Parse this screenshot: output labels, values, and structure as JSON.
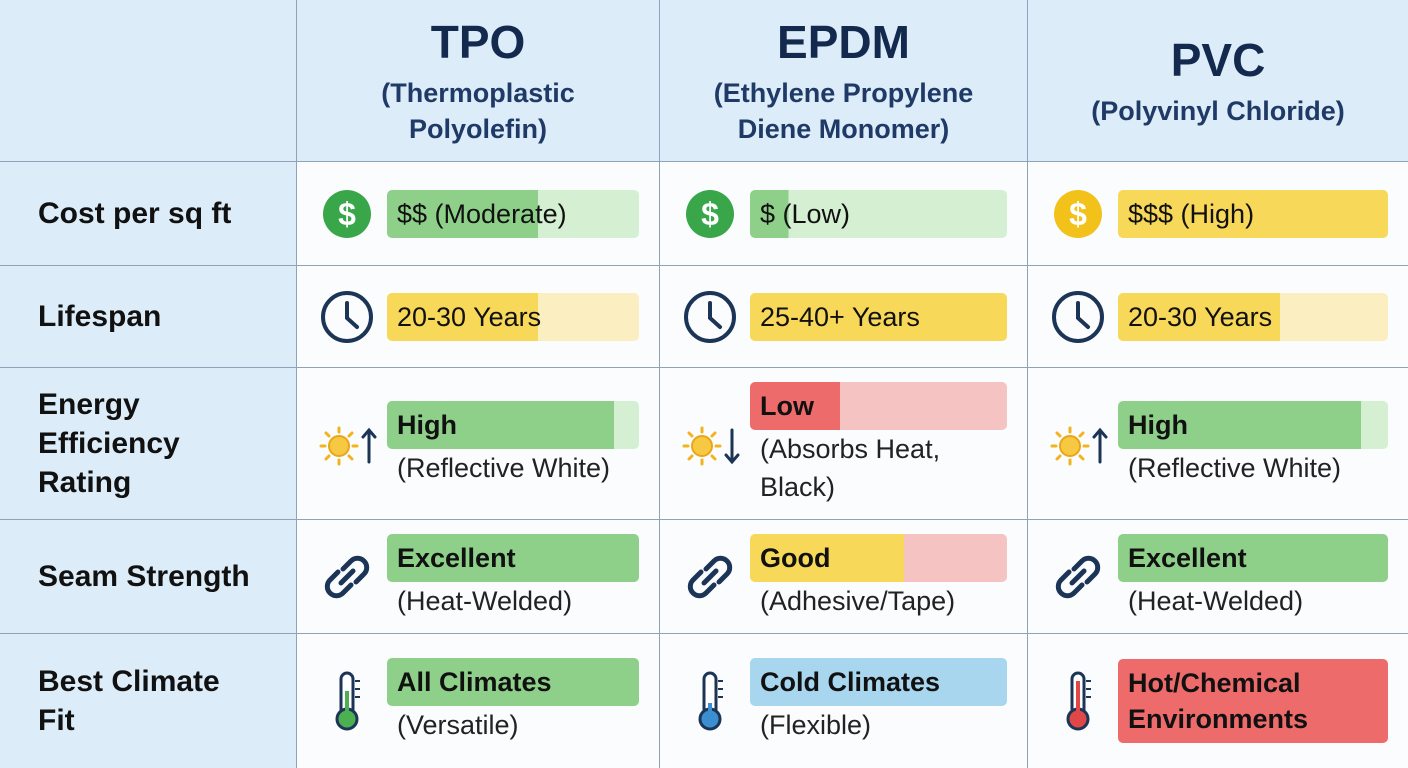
{
  "columns": [
    {
      "name": "TPO",
      "full_name": "(Thermoplastic Polyolefin)"
    },
    {
      "name": "EPDM",
      "full_name": "(Ethylene Propylene Diene Monomer)"
    },
    {
      "name": "PVC",
      "full_name": "(Polyvinyl Chloride)"
    }
  ],
  "rows": [
    {
      "label": "Cost per sq ft",
      "cells": [
        {
          "rating": "$$ (Moderate)",
          "color": "green"
        },
        {
          "rating": "$ (Low)",
          "color": "green"
        },
        {
          "rating": "$$$ (High)",
          "color": "yellow"
        }
      ]
    },
    {
      "label": "Lifespan",
      "cells": [
        {
          "rating": "20-30 Years",
          "color": "yellow"
        },
        {
          "rating": "25-40+ Years",
          "color": "yellow"
        },
        {
          "rating": "20-30 Years",
          "color": "yellow"
        }
      ]
    },
    {
      "label": "Energy Efficiency Rating",
      "cells": [
        {
          "rating": "High",
          "note": "(Reflective White)",
          "color": "green"
        },
        {
          "rating": "Low",
          "note": "(Absorbs Heat, Black)",
          "color": "red"
        },
        {
          "rating": "High",
          "note": "(Reflective White)",
          "color": "green"
        }
      ]
    },
    {
      "label": "Seam Strength",
      "cells": [
        {
          "rating": "Excellent",
          "note": "(Heat-Welded)",
          "color": "green"
        },
        {
          "rating": "Good",
          "note": "(Adhesive/Tape)",
          "color": "yellow"
        },
        {
          "rating": "Excellent",
          "note": "(Heat-Welded)",
          "color": "green"
        }
      ]
    },
    {
      "label": "Best Climate Fit",
      "cells": [
        {
          "rating": "All Climates",
          "note": "(Versatile)",
          "color": "green"
        },
        {
          "rating": "Cold Climates",
          "note": "(Flexible)",
          "color": "blue"
        },
        {
          "rating": "Hot/Chemical Environments",
          "color": "red"
        }
      ]
    }
  ]
}
